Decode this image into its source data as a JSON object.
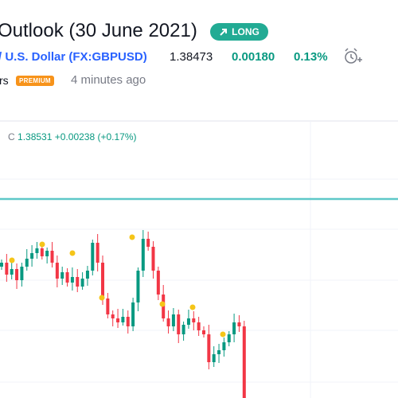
{
  "header": {
    "title": "Outlook (30 June 2021)",
    "badge": "LONG"
  },
  "symbol": {
    "name": "/ U.S. Dollar",
    "ticker": "(FX:GBPUSD)",
    "price": "1.38473",
    "change": "0.00180",
    "change_pct": "0.13%"
  },
  "author": {
    "name_fragment": "rs",
    "badge": "PREMIUM",
    "time": "4 minutes ago"
  },
  "chart": {
    "legend": {
      "label": "C",
      "close": "1.38531",
      "change": "+0.00238",
      "change_pct": "(+0.17%)"
    }
  }
}
